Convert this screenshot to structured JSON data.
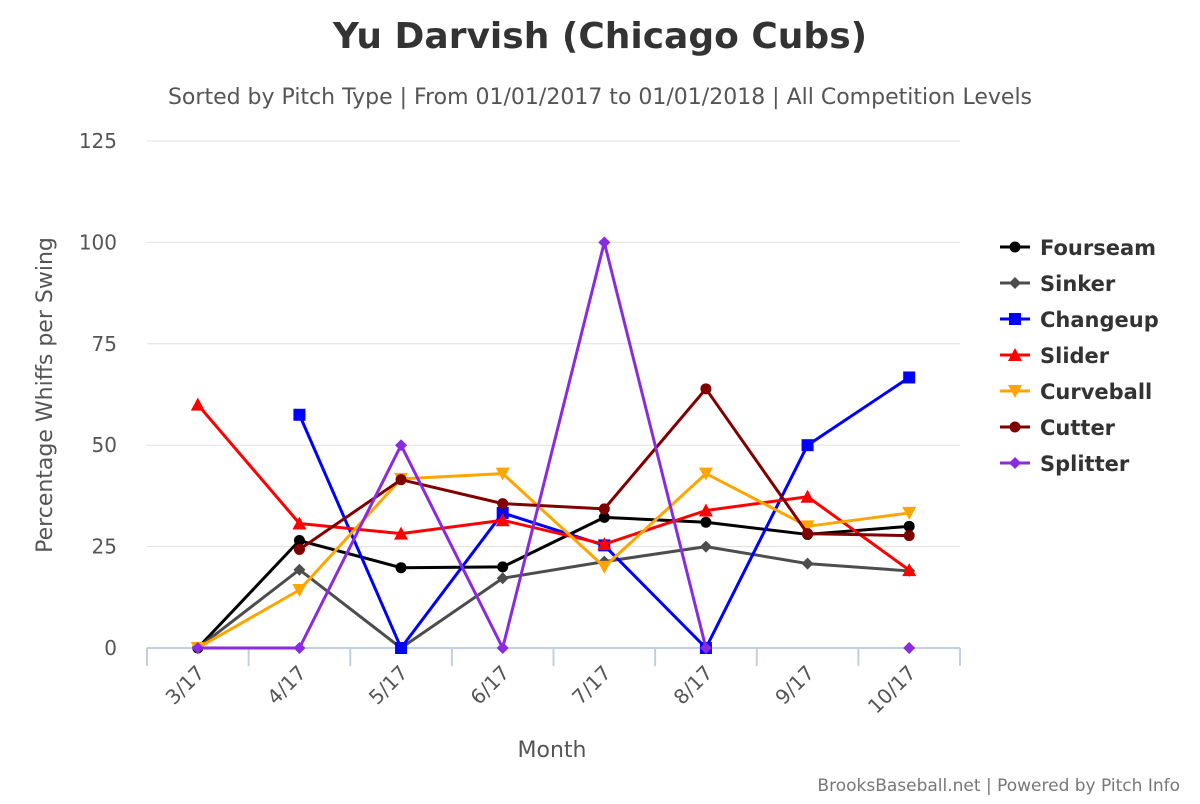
{
  "chart_data": {
    "type": "line",
    "title": "Yu Darvish (Chicago Cubs)",
    "subtitle": "Sorted by Pitch Type | From 01/01/2017 to 01/01/2018 | All Competition Levels",
    "xlabel": "Month",
    "ylabel": "Percentage Whiffs per Swing",
    "credits": "BrooksBaseball.net | Powered by Pitch Info",
    "categories": [
      "3/17",
      "4/17",
      "5/17",
      "6/17",
      "7/17",
      "8/17",
      "9/17",
      "10/17"
    ],
    "ylim": [
      0,
      125
    ],
    "yticks": [
      0,
      25,
      50,
      75,
      100,
      125
    ],
    "grid": true,
    "legend_position": "right",
    "series": [
      {
        "name": "Fourseam",
        "color": "#000000",
        "marker": "circle",
        "values": [
          0,
          26.5,
          19.8,
          20,
          32.2,
          31,
          28,
          30
        ]
      },
      {
        "name": "Sinker",
        "color": "#4d4d4d",
        "marker": "diamond",
        "values": [
          0,
          19.3,
          0,
          17.2,
          21.3,
          25,
          20.8,
          19
        ]
      },
      {
        "name": "Changeup",
        "color": "#0000ff",
        "marker": "square",
        "values": [
          null,
          57.5,
          0,
          33.3,
          25.3,
          0,
          50,
          66.7
        ]
      },
      {
        "name": "Slider",
        "color": "#ff0000",
        "marker": "triangle",
        "values": [
          60,
          30.7,
          28.2,
          31.5,
          25.6,
          33.9,
          37.3,
          19.2
        ]
      },
      {
        "name": "Curveball",
        "color": "#ffa500",
        "marker": "triangle-down",
        "values": [
          0,
          14.3,
          41.7,
          43,
          20,
          43,
          30,
          33.3
        ]
      },
      {
        "name": "Cutter",
        "color": "#800000",
        "marker": "circle",
        "values": [
          null,
          24.3,
          41.5,
          35.6,
          34.3,
          63.9,
          28.2,
          27.7
        ]
      },
      {
        "name": "Splitter",
        "color": "#8a2be2",
        "marker": "diamond",
        "values": [
          0,
          0,
          50,
          0,
          100,
          0,
          null,
          0
        ]
      }
    ]
  }
}
